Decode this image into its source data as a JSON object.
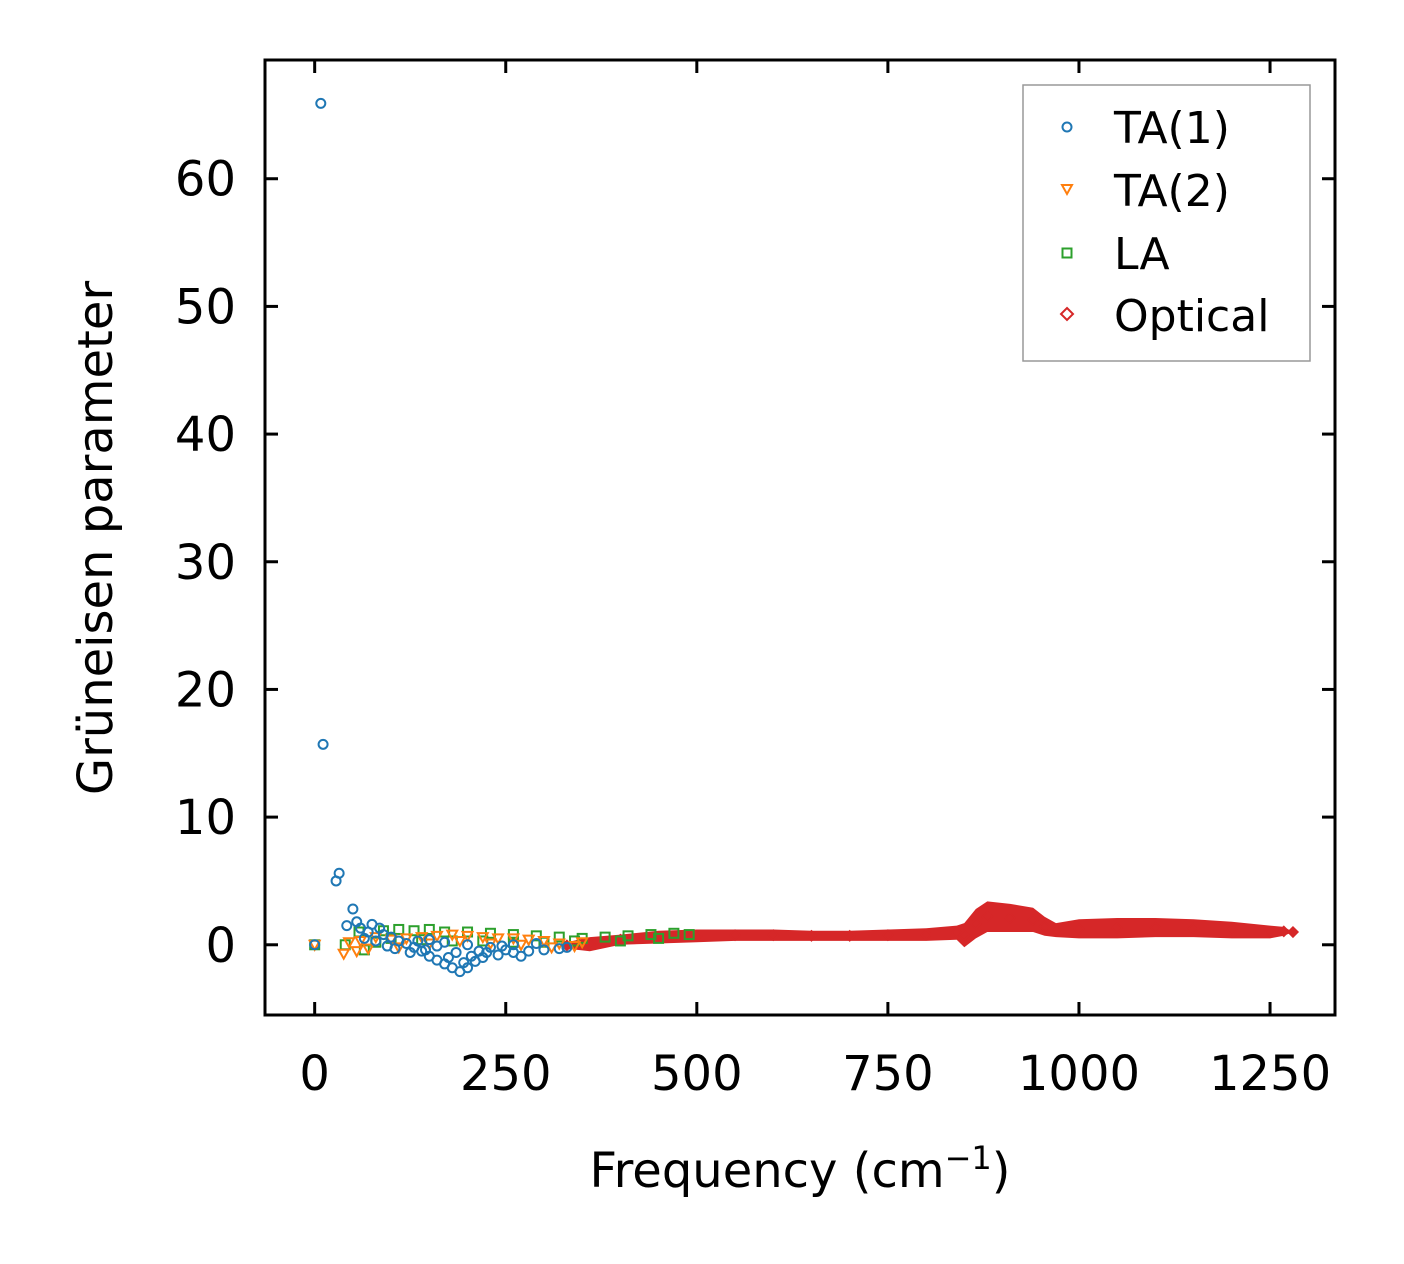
{
  "chart_data": {
    "type": "scatter",
    "title": "",
    "xlabel": "Frequency (cm",
    "xlabel_sup": "−1",
    "xlabel_end": ")",
    "ylabel": "Grüneisen parameter",
    "xlim": [
      -65,
      1335
    ],
    "ylim": [
      -5.5,
      69.3
    ],
    "xticks": [
      0,
      250,
      500,
      750,
      1000,
      1250
    ],
    "xtick_labels": [
      "0",
      "250",
      "500",
      "750",
      "1000",
      "1250"
    ],
    "yticks": [
      0,
      10,
      20,
      30,
      40,
      50,
      60
    ],
    "ytick_labels": [
      "0",
      "10",
      "20",
      "30",
      "40",
      "50",
      "60"
    ],
    "legend_position": "top-right",
    "grid": false,
    "series": [
      {
        "name": "TA(1)",
        "marker": "circle",
        "color": "#1f77b4",
        "points": [
          [
            0,
            0
          ],
          [
            8,
            65.9
          ],
          [
            11,
            15.7
          ],
          [
            28,
            5.0
          ],
          [
            32,
            5.6
          ],
          [
            42,
            1.5
          ],
          [
            50,
            2.8
          ],
          [
            55,
            1.8
          ],
          [
            60,
            1.3
          ],
          [
            70,
            1.0
          ],
          [
            75,
            1.6
          ],
          [
            85,
            1.3
          ],
          [
            90,
            0.8
          ],
          [
            100,
            0.6
          ],
          [
            110,
            0.3
          ],
          [
            120,
            0.1
          ],
          [
            130,
            -0.2
          ],
          [
            140,
            -0.5
          ],
          [
            150,
            -0.9
          ],
          [
            160,
            -1.2
          ],
          [
            170,
            -1.5
          ],
          [
            180,
            -1.8
          ],
          [
            190,
            -2.1
          ],
          [
            200,
            -1.8
          ],
          [
            210,
            -1.3
          ],
          [
            220,
            -1.0
          ],
          [
            240,
            -0.8
          ],
          [
            260,
            -0.6
          ],
          [
            280,
            -0.5
          ],
          [
            300,
            -0.4
          ],
          [
            320,
            -0.3
          ],
          [
            330,
            -0.2
          ],
          [
            150,
            0.4
          ],
          [
            170,
            0.2
          ],
          [
            200,
            0.0
          ],
          [
            230,
            -0.2
          ],
          [
            260,
            0.0
          ],
          [
            290,
            0.1
          ],
          [
            95,
            -0.1
          ],
          [
            125,
            -0.6
          ],
          [
            160,
            -0.1
          ],
          [
            185,
            -0.6
          ],
          [
            215,
            -0.5
          ],
          [
            250,
            -0.4
          ],
          [
            270,
            -0.9
          ],
          [
            65,
            0.5
          ],
          [
            80,
            0.3
          ],
          [
            105,
            -0.3
          ],
          [
            135,
            0.3
          ],
          [
            145,
            -0.4
          ],
          [
            175,
            -1.0
          ],
          [
            195,
            -1.4
          ],
          [
            205,
            -0.9
          ],
          [
            225,
            -0.6
          ],
          [
            245,
            -0.1
          ]
        ]
      },
      {
        "name": "TA(2)",
        "marker": "triangle-down",
        "color": "#ff7f0e",
        "points": [
          [
            0,
            0
          ],
          [
            38,
            -0.7
          ],
          [
            45,
            0.2
          ],
          [
            55,
            -0.5
          ],
          [
            60,
            0.3
          ],
          [
            70,
            -0.3
          ],
          [
            80,
            0.6
          ],
          [
            100,
            0.4
          ],
          [
            120,
            0.5
          ],
          [
            140,
            0.6
          ],
          [
            160,
            0.7
          ],
          [
            180,
            0.8
          ],
          [
            200,
            0.7
          ],
          [
            220,
            0.6
          ],
          [
            240,
            0.5
          ],
          [
            260,
            0.5
          ],
          [
            280,
            0.4
          ],
          [
            300,
            0.3
          ],
          [
            320,
            0.1
          ],
          [
            340,
            -0.1
          ],
          [
            350,
            0.2
          ],
          [
            110,
            -0.2
          ],
          [
            150,
            0.1
          ],
          [
            190,
            0.3
          ],
          [
            230,
            0.1
          ],
          [
            270,
            0.0
          ],
          [
            310,
            -0.2
          ]
        ]
      },
      {
        "name": "LA",
        "marker": "square",
        "color": "#2ca02c",
        "points": [
          [
            0,
            0
          ],
          [
            40,
            0.0
          ],
          [
            58,
            1.0
          ],
          [
            65,
            -0.4
          ],
          [
            80,
            0.2
          ],
          [
            90,
            1.1
          ],
          [
            110,
            1.2
          ],
          [
            130,
            1.1
          ],
          [
            150,
            1.2
          ],
          [
            170,
            1.0
          ],
          [
            200,
            1.0
          ],
          [
            230,
            0.9
          ],
          [
            260,
            0.8
          ],
          [
            290,
            0.7
          ],
          [
            320,
            0.6
          ],
          [
            350,
            0.5
          ],
          [
            380,
            0.6
          ],
          [
            410,
            0.7
          ],
          [
            440,
            0.8
          ],
          [
            470,
            0.9
          ],
          [
            490,
            0.8
          ],
          [
            100,
            0.5
          ],
          [
            140,
            0.4
          ],
          [
            180,
            0.3
          ],
          [
            220,
            0.3
          ],
          [
            260,
            0.2
          ],
          [
            300,
            0.2
          ],
          [
            340,
            0.3
          ],
          [
            400,
            0.3
          ],
          [
            450,
            0.5
          ]
        ]
      },
      {
        "name": "Optical",
        "marker": "diamond",
        "color": "#d62728",
        "band": [
          [
            330,
            -0.3,
            0.2
          ],
          [
            360,
            -0.5,
            0.6
          ],
          [
            400,
            0.0,
            0.8
          ],
          [
            450,
            0.1,
            1.1
          ],
          [
            500,
            0.2,
            1.2
          ],
          [
            550,
            0.3,
            1.2
          ],
          [
            600,
            0.3,
            1.2
          ],
          [
            650,
            0.3,
            1.1
          ],
          [
            700,
            0.3,
            1.1
          ],
          [
            750,
            0.3,
            1.2
          ],
          [
            800,
            0.3,
            1.3
          ],
          [
            840,
            0.4,
            1.5
          ],
          [
            850,
            -0.2,
            1.7
          ],
          [
            865,
            0.5,
            2.8
          ],
          [
            880,
            1.0,
            3.4
          ],
          [
            910,
            1.0,
            3.2
          ],
          [
            940,
            1.0,
            2.9
          ],
          [
            955,
            0.7,
            2.2
          ],
          [
            970,
            0.6,
            1.7
          ],
          [
            1000,
            0.5,
            2.0
          ],
          [
            1050,
            0.5,
            2.1
          ],
          [
            1100,
            0.6,
            2.1
          ],
          [
            1150,
            0.6,
            2.0
          ],
          [
            1200,
            0.5,
            1.8
          ],
          [
            1250,
            0.5,
            1.5
          ],
          [
            1268,
            0.7,
            1.4
          ],
          [
            1280,
            1.0,
            1.0
          ]
        ]
      }
    ]
  }
}
